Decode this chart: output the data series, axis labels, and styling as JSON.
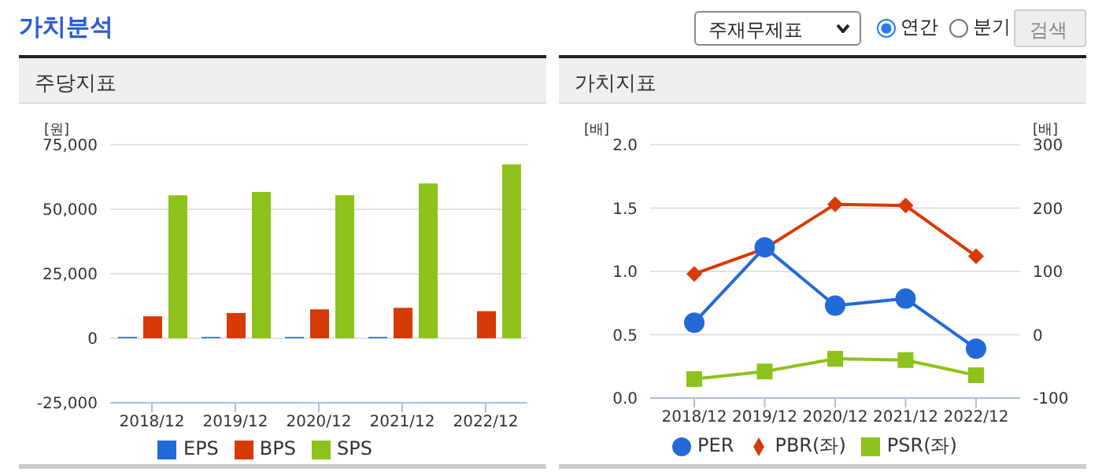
{
  "chart_data": [
    {
      "type": "bar",
      "title": "주당지표",
      "ylabel": "[원]",
      "annotations": [
        "가치분석",
        "주재무제표",
        "연간",
        "분기",
        "검색"
      ],
      "categories": [
        "2018/12",
        "2019/12",
        "2020/12",
        "2021/12",
        "2022/12"
      ],
      "series": [
        {
          "name": "EPS",
          "color": "#2369d9",
          "values": [
            500,
            500,
            500,
            500,
            null
          ]
        },
        {
          "name": "BPS",
          "color": "#d63a05",
          "values": [
            8500,
            9800,
            11200,
            11800,
            10500
          ]
        },
        {
          "name": "SPS",
          "color": "#8cc21b",
          "values": [
            55400,
            56700,
            55400,
            60000,
            67400
          ]
        }
      ],
      "ylim": [
        -25000,
        75000
      ],
      "yticks": [
        {
          "value": -25000,
          "label": "-25,000"
        },
        {
          "value": 0,
          "label": "0"
        },
        {
          "value": 25000,
          "label": "25,000"
        },
        {
          "value": 50000,
          "label": "50,000"
        },
        {
          "value": 75000,
          "label": "75,000"
        }
      ],
      "grid": "y",
      "legend": "bottom"
    },
    {
      "type": "line",
      "title": "가치지표",
      "ylabel": "[배]",
      "y2label": "[배]",
      "categories": [
        "2018/12",
        "2019/12",
        "2020/12",
        "2021/12",
        "2022/12"
      ],
      "series": [
        {
          "name": "PER",
          "color": "#2369d9",
          "axis": "y2",
          "marker": "circle",
          "values": [
            19,
            138,
            46,
            57,
            -22
          ]
        },
        {
          "name": "PBR(좌)",
          "color": "#d63a05",
          "marker": "diamond",
          "values": [
            0.98,
            1.18,
            1.53,
            1.52,
            1.12
          ]
        },
        {
          "name": "PSR(좌)",
          "color": "#8cc21b",
          "marker": "square",
          "values": [
            0.15,
            0.21,
            0.31,
            0.3,
            0.18
          ]
        }
      ],
      "ylim": [
        0,
        2
      ],
      "yticks": [
        {
          "value": 0,
          "label": "0.0"
        },
        {
          "value": 0.5,
          "label": "0.5"
        },
        {
          "value": 1,
          "label": "1.0"
        },
        {
          "value": 1.5,
          "label": "1.5"
        },
        {
          "value": 2,
          "label": "2.0"
        }
      ],
      "y2lim": [
        -100,
        300
      ],
      "y2ticks": [
        -100,
        0,
        100,
        200,
        300
      ],
      "grid": "y",
      "legend": "bottom"
    }
  ]
}
